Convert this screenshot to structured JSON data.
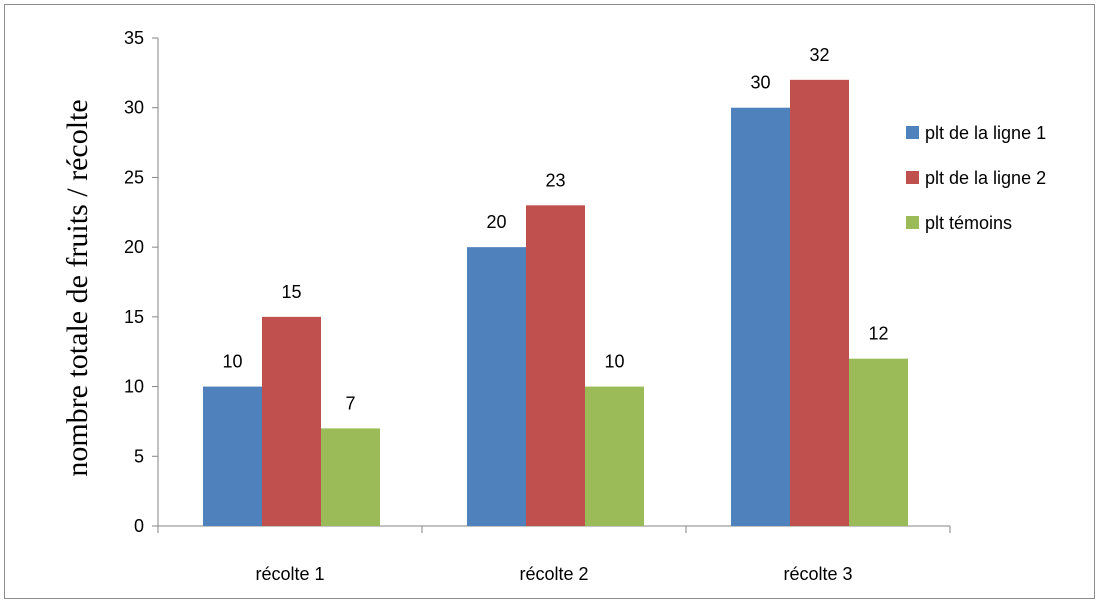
{
  "chart_data": {
    "type": "bar",
    "title": "",
    "xlabel": "",
    "ylabel": "nombre totale de fruits / récolte",
    "categories": [
      "récolte 1",
      "récolte 2",
      "récolte 3"
    ],
    "series": [
      {
        "name": "plt de la ligne 1",
        "color": "#4f81bd",
        "values": [
          10,
          20,
          30
        ]
      },
      {
        "name": "plt de la ligne 2",
        "color": "#c0504d",
        "values": [
          15,
          23,
          32
        ]
      },
      {
        "name": "plt témoins",
        "color": "#9bbb59",
        "values": [
          7,
          10,
          12
        ]
      }
    ],
    "ylim": [
      0,
      35
    ],
    "yticks": [
      0,
      5,
      10,
      15,
      20,
      25,
      30,
      35
    ],
    "grid": false,
    "legend_position": "right",
    "data_labels": true
  }
}
